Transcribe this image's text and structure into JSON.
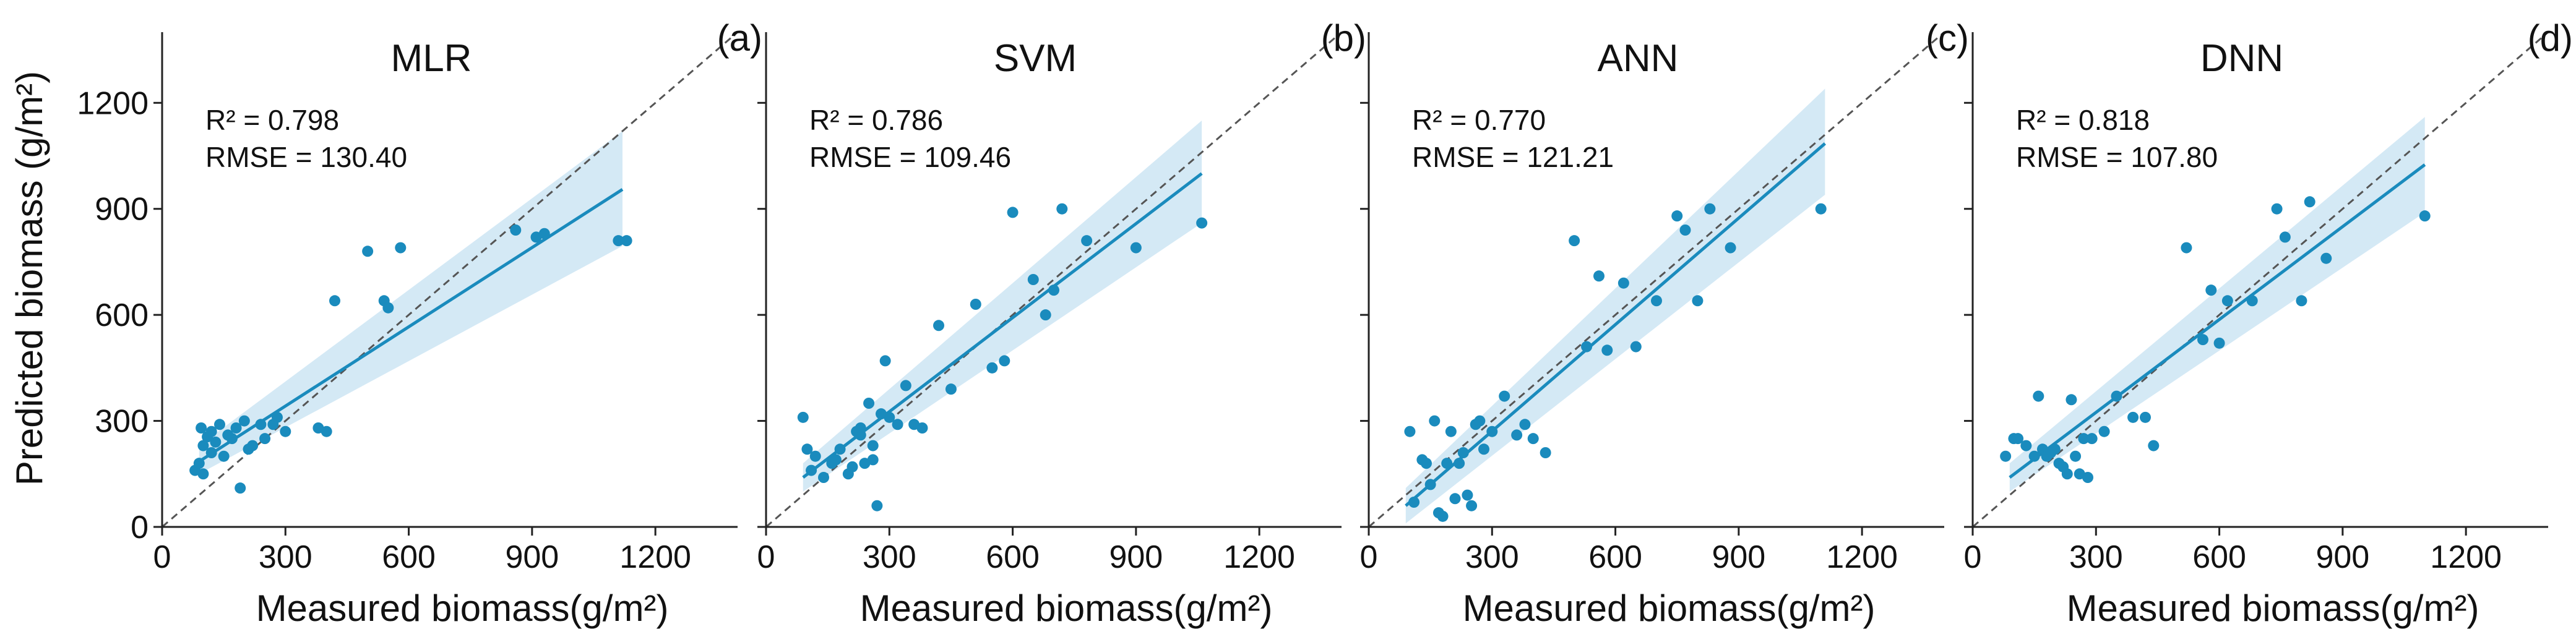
{
  "figure": {
    "y_axis_label": "Predicted biomass (g/m²)",
    "x_axis_label": "Measured biomass(g/m²)",
    "colors": {
      "points": "#1a8bbd",
      "fit_line": "#1a8bbd",
      "band": "#c6e1f1",
      "identity_line": "#555555",
      "axes": "#222222"
    }
  },
  "chart_data": [
    {
      "type": "scatter",
      "title": "MLR",
      "panel_label": "(a)",
      "stats": {
        "r2": "R² = 0.798",
        "rmse": "RMSE = 130.40"
      },
      "xlim": [
        0,
        1400
      ],
      "ylim": [
        0,
        1400
      ],
      "xticks": [
        0,
        300,
        600,
        900,
        1200
      ],
      "yticks": [
        0,
        300,
        600,
        900,
        1200
      ],
      "identity_line": true,
      "fit": {
        "x": [
          90,
          1120
        ],
        "y": [
          185,
          955
        ],
        "band_lower_end": [
          150,
          795
        ],
        "band_upper_end": [
          230,
          1120
        ]
      },
      "points": [
        [
          80,
          160
        ],
        [
          90,
          180
        ],
        [
          100,
          230
        ],
        [
          110,
          255
        ],
        [
          95,
          280
        ],
        [
          120,
          270
        ],
        [
          130,
          240
        ],
        [
          140,
          290
        ],
        [
          150,
          200
        ],
        [
          160,
          260
        ],
        [
          170,
          250
        ],
        [
          180,
          280
        ],
        [
          190,
          110
        ],
        [
          200,
          300
        ],
        [
          210,
          220
        ],
        [
          220,
          230
        ],
        [
          240,
          290
        ],
        [
          250,
          250
        ],
        [
          270,
          290
        ],
        [
          280,
          310
        ],
        [
          300,
          270
        ],
        [
          380,
          280
        ],
        [
          400,
          270
        ],
        [
          420,
          640
        ],
        [
          500,
          780
        ],
        [
          540,
          640
        ],
        [
          550,
          620
        ],
        [
          580,
          790
        ],
        [
          860,
          840
        ],
        [
          910,
          820
        ],
        [
          930,
          830
        ],
        [
          1110,
          810
        ],
        [
          1130,
          810
        ],
        [
          100,
          150
        ],
        [
          120,
          210
        ]
      ]
    },
    {
      "type": "scatter",
      "title": "SVM",
      "panel_label": "(b)",
      "stats": {
        "r2": "R² = 0.786",
        "rmse": "RMSE = 109.46"
      },
      "xlim": [
        0,
        1400
      ],
      "ylim": [
        0,
        1400
      ],
      "xticks": [
        0,
        300,
        600,
        900,
        1200
      ],
      "yticks": [
        0,
        300,
        600,
        900,
        1200
      ],
      "identity_line": true,
      "fit": {
        "x": [
          90,
          1060
        ],
        "y": [
          140,
          1000
        ],
        "band_lower_end": [
          100,
          860
        ],
        "band_upper_end": [
          180,
          1150
        ]
      },
      "points": [
        [
          90,
          310
        ],
        [
          100,
          220
        ],
        [
          110,
          160
        ],
        [
          120,
          200
        ],
        [
          140,
          140
        ],
        [
          160,
          180
        ],
        [
          170,
          190
        ],
        [
          180,
          220
        ],
        [
          200,
          150
        ],
        [
          210,
          170
        ],
        [
          220,
          270
        ],
        [
          230,
          260
        ],
        [
          240,
          180
        ],
        [
          250,
          350
        ],
        [
          260,
          230
        ],
        [
          270,
          60
        ],
        [
          280,
          320
        ],
        [
          290,
          470
        ],
        [
          300,
          310
        ],
        [
          320,
          290
        ],
        [
          340,
          400
        ],
        [
          360,
          290
        ],
        [
          380,
          280
        ],
        [
          420,
          570
        ],
        [
          450,
          390
        ],
        [
          510,
          630
        ],
        [
          550,
          450
        ],
        [
          580,
          470
        ],
        [
          600,
          890
        ],
        [
          650,
          700
        ],
        [
          680,
          600
        ],
        [
          700,
          670
        ],
        [
          720,
          900
        ],
        [
          780,
          810
        ],
        [
          900,
          790
        ],
        [
          1060,
          860
        ],
        [
          230,
          280
        ],
        [
          260,
          190
        ]
      ]
    },
    {
      "type": "scatter",
      "title": "ANN",
      "panel_label": "(c)",
      "stats": {
        "r2": "R² = 0.770",
        "rmse": "RMSE = 121.21"
      },
      "xlim": [
        0,
        1400
      ],
      "ylim": [
        0,
        1400
      ],
      "xticks": [
        0,
        300,
        600,
        900,
        1200
      ],
      "yticks": [
        0,
        300,
        600,
        900,
        1200
      ],
      "identity_line": true,
      "fit": {
        "x": [
          90,
          1110
        ],
        "y": [
          60,
          1085
        ],
        "band_lower_end": [
          10,
          940
        ],
        "band_upper_end": [
          110,
          1240
        ]
      },
      "points": [
        [
          100,
          270
        ],
        [
          110,
          70
        ],
        [
          130,
          190
        ],
        [
          150,
          120
        ],
        [
          160,
          300
        ],
        [
          170,
          40
        ],
        [
          180,
          30
        ],
        [
          190,
          180
        ],
        [
          200,
          270
        ],
        [
          210,
          80
        ],
        [
          220,
          180
        ],
        [
          230,
          210
        ],
        [
          240,
          90
        ],
        [
          250,
          60
        ],
        [
          260,
          290
        ],
        [
          270,
          300
        ],
        [
          280,
          220
        ],
        [
          300,
          270
        ],
        [
          330,
          370
        ],
        [
          360,
          260
        ],
        [
          380,
          290
        ],
        [
          400,
          250
        ],
        [
          430,
          210
        ],
        [
          500,
          810
        ],
        [
          530,
          510
        ],
        [
          560,
          710
        ],
        [
          580,
          500
        ],
        [
          620,
          690
        ],
        [
          650,
          510
        ],
        [
          700,
          640
        ],
        [
          750,
          880
        ],
        [
          770,
          840
        ],
        [
          800,
          640
        ],
        [
          830,
          900
        ],
        [
          880,
          790
        ],
        [
          1100,
          900
        ],
        [
          140,
          180
        ]
      ]
    },
    {
      "type": "scatter",
      "title": "DNN",
      "panel_label": "(d)",
      "stats": {
        "r2": "R² = 0.818",
        "rmse": "RMSE = 107.80"
      },
      "xlim": [
        0,
        1400
      ],
      "ylim": [
        0,
        1400
      ],
      "xticks": [
        0,
        300,
        600,
        900,
        1200
      ],
      "yticks": [
        0,
        300,
        600,
        900,
        1200
      ],
      "identity_line": true,
      "fit": {
        "x": [
          90,
          1100
        ],
        "y": [
          140,
          1025
        ],
        "band_lower_end": [
          100,
          890
        ],
        "band_upper_end": [
          180,
          1160
        ]
      },
      "points": [
        [
          80,
          200
        ],
        [
          100,
          250
        ],
        [
          110,
          250
        ],
        [
          130,
          230
        ],
        [
          150,
          200
        ],
        [
          160,
          370
        ],
        [
          170,
          220
        ],
        [
          180,
          200
        ],
        [
          200,
          220
        ],
        [
          210,
          180
        ],
        [
          220,
          170
        ],
        [
          230,
          150
        ],
        [
          240,
          360
        ],
        [
          250,
          200
        ],
        [
          260,
          150
        ],
        [
          270,
          250
        ],
        [
          280,
          140
        ],
        [
          290,
          250
        ],
        [
          320,
          270
        ],
        [
          350,
          370
        ],
        [
          390,
          310
        ],
        [
          420,
          310
        ],
        [
          440,
          230
        ],
        [
          520,
          790
        ],
        [
          560,
          530
        ],
        [
          580,
          670
        ],
        [
          600,
          520
        ],
        [
          620,
          640
        ],
        [
          680,
          640
        ],
        [
          740,
          900
        ],
        [
          760,
          820
        ],
        [
          800,
          640
        ],
        [
          820,
          920
        ],
        [
          860,
          760
        ],
        [
          1100,
          880
        ],
        [
          190,
          210
        ]
      ]
    }
  ]
}
